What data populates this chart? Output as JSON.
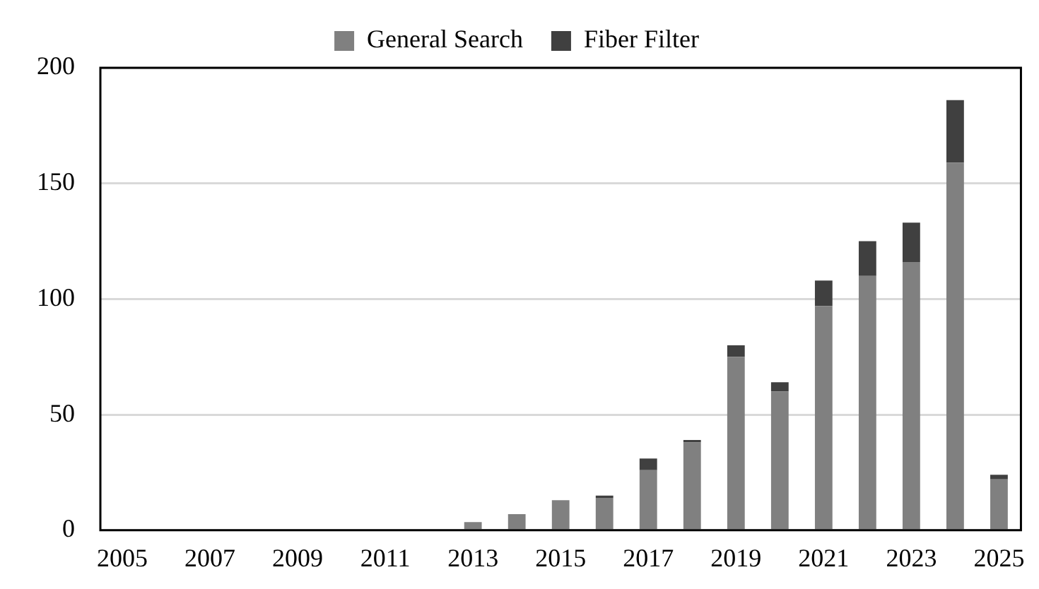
{
  "chart_data": {
    "type": "bar",
    "stacked": true,
    "categories": [
      "2005",
      null,
      "2007",
      null,
      "2009",
      null,
      "2011",
      null,
      "2013",
      null,
      "2015",
      null,
      "2017",
      null,
      "2019",
      null,
      "2021",
      null,
      "2023",
      null,
      "2025"
    ],
    "series": [
      {
        "name": "General Search",
        "color": "#808080",
        "values": [
          0,
          0.5,
          0,
          0,
          0,
          0,
          0,
          0.5,
          3.5,
          7,
          13,
          14,
          26,
          38,
          75,
          60,
          97,
          110,
          116,
          159,
          22
        ]
      },
      {
        "name": "Fiber Filter",
        "color": "#404040",
        "values": [
          0,
          0,
          0,
          0,
          0,
          0,
          0,
          0,
          0,
          0,
          0,
          1,
          5,
          1,
          5,
          4,
          11,
          15,
          17,
          27,
          2
        ]
      }
    ],
    "ylim": [
      0,
      200
    ],
    "yticks": [
      0,
      50,
      100,
      150,
      200
    ],
    "grid": "y",
    "legend": "top"
  }
}
